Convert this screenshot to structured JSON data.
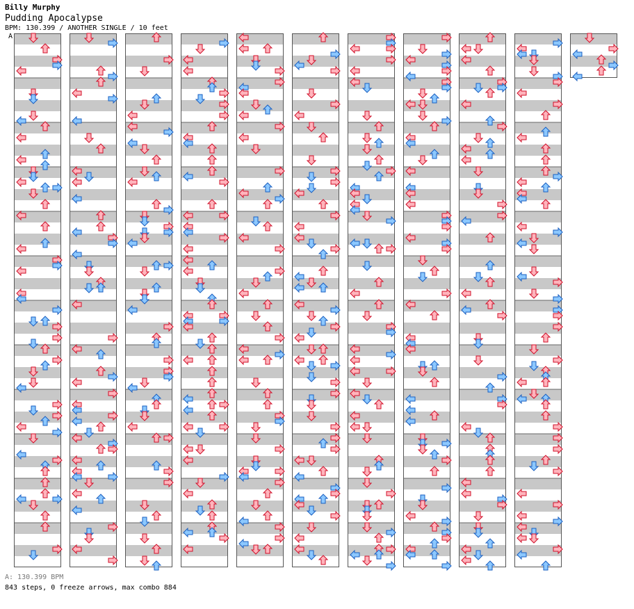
{
  "header": {
    "artist": "Billy Murphy",
    "title": "Pudding Apocalypse",
    "info": "BPM: 130.399 / ANOTHER SINGLE / 10 feet"
  },
  "bpm_marker": "A",
  "footer": {
    "bpm": "A: 130.399 BPM",
    "stats": "843 steps, 0 freeze arrows, max combo 884"
  },
  "colors": {
    "red_fill": "#ffb4bc",
    "red_stroke": "#d0102a",
    "blue_fill": "#8cc8ff",
    "blue_stroke": "#1a5fc0",
    "stripe": "#c8c8c8",
    "border": "#555555"
  },
  "chart_data": {
    "type": "table",
    "columns": 11,
    "measures_per_column": 12,
    "lanes": [
      "left",
      "down",
      "up",
      "right"
    ],
    "measures_shown": 121,
    "bpm": 130.399,
    "steps": 843,
    "freeze_arrows": 0,
    "max_combo": 884
  }
}
